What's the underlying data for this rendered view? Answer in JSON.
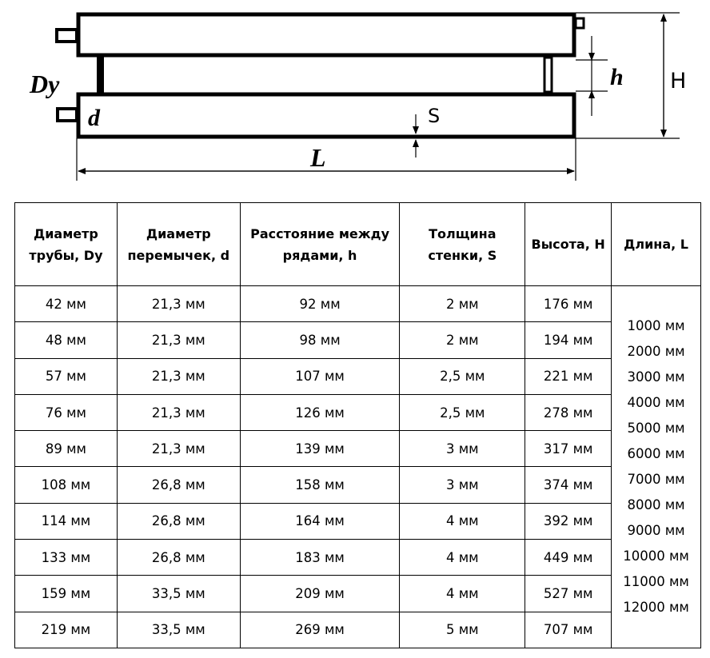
{
  "diagram": {
    "labels": {
      "Dy": "Dy",
      "d": "d",
      "h": "h",
      "H": "H",
      "S": "S",
      "L": "L"
    }
  },
  "table": {
    "headers": [
      "Диаметр трубы, Dy",
      "Диаметр перемычек, d",
      "Расстояние между рядами, h",
      "Толщина стенки, S",
      "Высота, H",
      "Длина, L"
    ],
    "header_lines": [
      [
        "Диаметр",
        "трубы, Dy"
      ],
      [
        "Диаметр",
        "перемычек, d"
      ],
      [
        "Расстояние между",
        "рядами, h"
      ],
      [
        "Толщина",
        "стенки, S"
      ],
      [
        "Высота, H"
      ],
      [
        "Длина, L"
      ]
    ],
    "rows": [
      [
        "42 мм",
        "21,3 мм",
        "92 мм",
        "2 мм",
        "176 мм"
      ],
      [
        "48 мм",
        "21,3 мм",
        "98 мм",
        "2 мм",
        "194 мм"
      ],
      [
        "57 мм",
        "21,3 мм",
        "107 мм",
        "2,5 мм",
        "221 мм"
      ],
      [
        "76 мм",
        "21,3 мм",
        "126 мм",
        "2,5 мм",
        "278 мм"
      ],
      [
        "89 мм",
        "21,3 мм",
        "139 мм",
        "3 мм",
        "317 мм"
      ],
      [
        "108 мм",
        "26,8 мм",
        "158 мм",
        "3 мм",
        "374 мм"
      ],
      [
        "114 мм",
        "26,8 мм",
        "164 мм",
        "4 мм",
        "392 мм"
      ],
      [
        "133 мм",
        "26,8 мм",
        "183 мм",
        "4 мм",
        "449 мм"
      ],
      [
        "159 мм",
        "33,5 мм",
        "209 мм",
        "4 мм",
        "527 мм"
      ],
      [
        "219 мм",
        "33,5 мм",
        "269 мм",
        "5 мм",
        "707 мм"
      ]
    ],
    "lengths": [
      "1000 мм",
      "2000 мм",
      "3000 мм",
      "4000 мм",
      "5000 мм",
      "6000 мм",
      "7000 мм",
      "8000 мм",
      "9000 мм",
      "10000 мм",
      "11000 мм",
      "12000 мм"
    ]
  }
}
